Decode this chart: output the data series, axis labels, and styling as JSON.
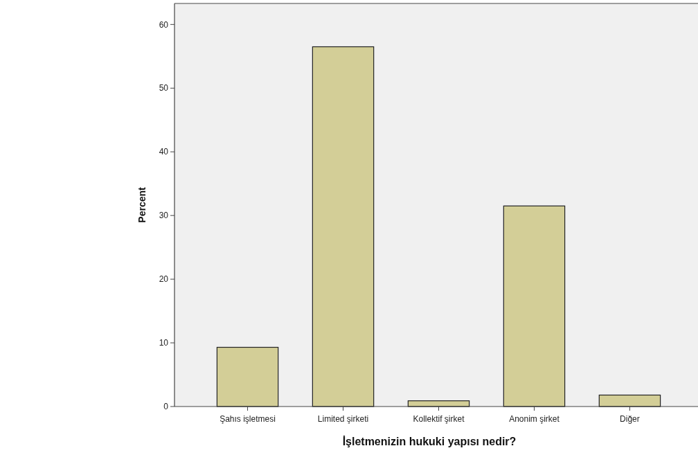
{
  "chart_data": {
    "type": "bar",
    "xlabel": "İşletmenizin hukuki yapısı nedir?",
    "ylabel": "Percent",
    "categories": [
      "Şahıs işletmesi",
      "Limited şirketi",
      "Kollektif şirket",
      "Anonim şirket",
      "Diğer"
    ],
    "values": [
      9.3,
      56.5,
      0.9,
      31.5,
      1.8
    ],
    "color": "#d3ce97",
    "ylim": [
      0,
      63.3
    ],
    "yticks": [
      0,
      10,
      20,
      30,
      40,
      50,
      60
    ],
    "grid": false
  }
}
